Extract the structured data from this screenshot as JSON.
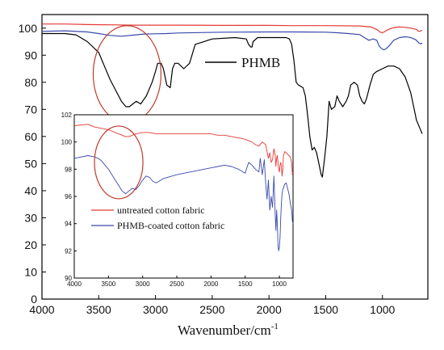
{
  "chart_data": [
    {
      "type": "line",
      "title": "",
      "xlabel": "Wavenumber/cm",
      "xlabel_superscript": "-1",
      "ylabel": "",
      "xlim": [
        4000,
        600
      ],
      "ylim": [
        0,
        105
      ],
      "x_ticks": [
        4000,
        3500,
        3000,
        2500,
        2000,
        1500,
        1000
      ],
      "y_ticks": [
        0,
        10,
        20,
        30,
        40,
        50,
        60,
        70,
        80,
        90,
        100
      ],
      "grid": false,
      "legend": [
        {
          "label": "PHMB",
          "color": "#000000",
          "placement": "upper-middle"
        }
      ],
      "annotations": [
        {
          "type": "ellipse",
          "color": "#c0392b",
          "center_x": 3250,
          "center_y": 83,
          "note": "O-H / N-H region highlighted"
        }
      ],
      "series": [
        {
          "name": "PHMB",
          "color": "#000000",
          "x": [
            4000,
            3800,
            3700,
            3600,
            3500,
            3450,
            3400,
            3350,
            3300,
            3260,
            3230,
            3200,
            3170,
            3130,
            3080,
            3030,
            3000,
            2980,
            2950,
            2930,
            2900,
            2870,
            2850,
            2830,
            2800,
            2750,
            2700,
            2650,
            2500,
            2300,
            2200,
            2180,
            2160,
            2150,
            2140,
            2100,
            2000,
            1900,
            1850,
            1820,
            1800,
            1780,
            1760,
            1740,
            1700,
            1680,
            1660,
            1640,
            1620,
            1600,
            1580,
            1560,
            1540,
            1530,
            1510,
            1490,
            1470,
            1450,
            1420,
            1400,
            1380,
            1350,
            1320,
            1300,
            1280,
            1250,
            1220,
            1200,
            1180,
            1160,
            1140,
            1110,
            1080,
            1050,
            1000,
            950,
            900,
            850,
            800,
            750,
            700,
            650
          ],
          "y": [
            98,
            98,
            97.5,
            95,
            91,
            86,
            81,
            77,
            73,
            71,
            71,
            72,
            73,
            72,
            75,
            80,
            84,
            87,
            87,
            85,
            79,
            78,
            85,
            87,
            87,
            85,
            87,
            94,
            96,
            96.5,
            96,
            94,
            93,
            93,
            95,
            96.5,
            96.5,
            96.5,
            96.5,
            96,
            94,
            88,
            80,
            79,
            78,
            75,
            68,
            60,
            55,
            56,
            54,
            50,
            46,
            45,
            52,
            60,
            73,
            70,
            71,
            75,
            73,
            71,
            73,
            75,
            79,
            80,
            79,
            75,
            73,
            72,
            74,
            79,
            83,
            84,
            85,
            86,
            86,
            85,
            82,
            76,
            66,
            61
          ]
        },
        {
          "name": "",
          "color": "#e53935",
          "x": [
            4000,
            3800,
            3600,
            3400,
            3200,
            3000,
            2800,
            2400,
            2000,
            1800,
            1500,
            1200,
            1100,
            1050,
            1020,
            1000,
            980,
            960,
            940,
            900,
            850,
            800,
            750,
            700,
            680,
            660,
            650
          ],
          "y": [
            101.5,
            101.5,
            101.3,
            101.2,
            101.1,
            101.1,
            101.1,
            101.0,
            101.0,
            100.9,
            100.9,
            100.8,
            100.4,
            99.5,
            98.5,
            98.3,
            98.7,
            99.2,
            99.6,
            100.2,
            100.4,
            100.3,
            100.0,
            99.5,
            98.8,
            99.0,
            99.2
          ]
        },
        {
          "name": "",
          "color": "#3949ab",
          "x": [
            4000,
            3800,
            3600,
            3500,
            3400,
            3300,
            3200,
            3100,
            3000,
            2900,
            2800,
            2400,
            2000,
            1800,
            1500,
            1400,
            1300,
            1200,
            1160,
            1120,
            1080,
            1050,
            1030,
            1010,
            990,
            970,
            940,
            900,
            850,
            800,
            780,
            760,
            720,
            700,
            680,
            660,
            650
          ],
          "y": [
            98.8,
            99.0,
            98.6,
            98.0,
            97.3,
            97.0,
            97.4,
            97.8,
            97.9,
            98.0,
            98.2,
            98.5,
            98.6,
            98.6,
            98.5,
            98.3,
            98.0,
            97.6,
            96.5,
            95.5,
            96.0,
            95.5,
            93.5,
            92.5,
            92.0,
            92.3,
            93.5,
            95.5,
            96.5,
            96.8,
            96.7,
            96.6,
            96.0,
            95.5,
            94.5,
            94.2,
            94.5
          ]
        }
      ]
    },
    {
      "type": "line",
      "title": "",
      "xlabel": "",
      "ylabel": "",
      "xlim": [
        4000,
        800
      ],
      "ylim": [
        90,
        102
      ],
      "x_ticks": [
        4000,
        3500,
        3000,
        2500,
        2000,
        1500,
        1000
      ],
      "y_ticks": [
        90,
        92,
        94,
        96,
        98,
        100,
        102
      ],
      "grid": false,
      "legend_placement": "lower-left",
      "legend": [
        {
          "label": "untreated cotton fabric",
          "color": "#e53935"
        },
        {
          "label": "PHMB-coated cotton fabric",
          "color": "#3949ab"
        }
      ],
      "annotations": [
        {
          "type": "ellipse",
          "color": "#c0392b",
          "center_x": 3350,
          "center_y": 98.5
        }
      ],
      "series": [
        {
          "name": "untreated cotton fabric",
          "color": "#e53935",
          "x": [
            4000,
            3800,
            3700,
            3600,
            3500,
            3400,
            3300,
            3250,
            3200,
            3150,
            3100,
            3000,
            2900,
            2800,
            2700,
            2500,
            2300,
            2100,
            2000,
            1900,
            1800,
            1700,
            1600,
            1500,
            1400,
            1350,
            1300,
            1250,
            1200,
            1180,
            1160,
            1140,
            1120,
            1100,
            1080,
            1060,
            1050,
            1040,
            1030,
            1020,
            1010,
            1000,
            990,
            980,
            970,
            960,
            950,
            940,
            920,
            900,
            880,
            860,
            840,
            820,
            810,
            800
          ],
          "y": [
            101.2,
            101.3,
            101.1,
            101.0,
            100.9,
            100.7,
            100.5,
            100.4,
            100.4,
            100.5,
            100.6,
            100.7,
            100.7,
            100.6,
            100.6,
            100.6,
            100.6,
            100.6,
            100.6,
            100.5,
            100.5,
            100.4,
            100.3,
            100.2,
            100.0,
            99.8,
            99.7,
            100.0,
            99.8,
            99.3,
            98.8,
            99.2,
            98.5,
            98.7,
            99.5,
            99.0,
            98.2,
            98.8,
            99.0,
            98.5,
            98.0,
            97.8,
            98.3,
            98.5,
            98.2,
            97.5,
            98.0,
            99.0,
            99.3,
            99.2,
            99.1,
            99.0,
            98.9,
            98.5,
            97.6,
            97.8
          ]
        },
        {
          "name": "PHMB-coated cotton fabric",
          "color": "#3949ab",
          "x": [
            4000,
            3800,
            3700,
            3650,
            3600,
            3550,
            3500,
            3450,
            3400,
            3350,
            3300,
            3250,
            3200,
            3150,
            3100,
            3050,
            3000,
            2950,
            2900,
            2850,
            2800,
            2700,
            2500,
            2300,
            2100,
            2000,
            1900,
            1800,
            1700,
            1600,
            1500,
            1450,
            1400,
            1350,
            1300,
            1280,
            1250,
            1220,
            1200,
            1180,
            1160,
            1140,
            1120,
            1100,
            1080,
            1060,
            1050,
            1040,
            1030,
            1020,
            1010,
            1000,
            990,
            980,
            970,
            960,
            950,
            940,
            930,
            920,
            900,
            880,
            860,
            840,
            820,
            810,
            800
          ],
          "y": [
            98.8,
            99.0,
            98.9,
            98.8,
            98.6,
            98.3,
            98.0,
            97.6,
            97.2,
            96.8,
            96.4,
            96.2,
            96.4,
            96.6,
            96.5,
            96.8,
            97.2,
            97.5,
            97.4,
            97.1,
            97.0,
            97.3,
            97.6,
            97.8,
            98.0,
            98.1,
            98.2,
            98.3,
            98.2,
            98.0,
            97.7,
            98.5,
            98.3,
            98.0,
            97.8,
            98.8,
            97.6,
            98.7,
            97.0,
            95.8,
            97.2,
            95.0,
            96.0,
            95.2,
            97.5,
            94.5,
            93.5,
            95.0,
            94.0,
            92.4,
            92.0,
            92.3,
            93.0,
            94.5,
            95.5,
            96.2,
            96.5,
            96.6,
            96.8,
            96.9,
            97.0,
            96.6,
            96.2,
            95.5,
            95.0,
            94.2,
            94.0
          ]
        }
      ]
    }
  ]
}
